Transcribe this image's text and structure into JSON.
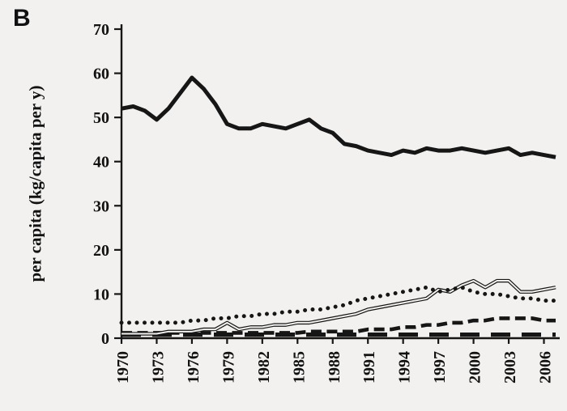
{
  "panel_label": "B",
  "chart_data": {
    "type": "line",
    "title": "",
    "xlabel": "",
    "ylabel": "per capita (kg/capita per y)",
    "ylim": [
      0,
      70
    ],
    "ytick_interval": 10,
    "ytick_labels": [
      0,
      10,
      20,
      30,
      40,
      50,
      60,
      70
    ],
    "grid": false,
    "legend": "none",
    "x": [
      1970,
      1971,
      1972,
      1973,
      1974,
      1975,
      1976,
      1977,
      1978,
      1979,
      1980,
      1981,
      1982,
      1983,
      1984,
      1985,
      1986,
      1987,
      1988,
      1989,
      1990,
      1991,
      1992,
      1993,
      1994,
      1995,
      1996,
      1997,
      1998,
      1999,
      2000,
      2001,
      2002,
      2003,
      2004,
      2005,
      2006,
      2007
    ],
    "xtick_labels": [
      "1970",
      "1973",
      "1976",
      "1979",
      "1982",
      "1985",
      "1988",
      "1991",
      "1994",
      "1997",
      "2000",
      "2003",
      "2006"
    ],
    "series": [
      {
        "name": "solid-thick",
        "style": "solid",
        "values": [
          52,
          52.5,
          51.5,
          49.5,
          52,
          55.5,
          59,
          56.5,
          53,
          48.5,
          47.5,
          47.5,
          48.5,
          48,
          47.5,
          48.5,
          49.5,
          47.5,
          46.5,
          44,
          43.5,
          42.5,
          42,
          41.5,
          42.5,
          42,
          43,
          42.5,
          42.5,
          43,
          42.5,
          42,
          42.5,
          43,
          41.5,
          42,
          41.5,
          41
        ]
      },
      {
        "name": "dotted",
        "style": "dotted",
        "values": [
          3.5,
          3.5,
          3.5,
          3.5,
          3.5,
          3.5,
          4,
          4,
          4.5,
          4.5,
          5,
          5,
          5.5,
          5.5,
          6,
          6,
          6.5,
          6.5,
          7,
          7.5,
          8.5,
          9,
          9.5,
          10,
          10.5,
          11,
          11.5,
          10.5,
          11,
          11.5,
          10.5,
          10,
          10,
          9.5,
          9,
          9,
          8.5,
          8.5
        ]
      },
      {
        "name": "double-line",
        "style": "double",
        "values": [
          1,
          1,
          1,
          1,
          1.5,
          1.5,
          1.5,
          2,
          2,
          3.5,
          2,
          2.5,
          2.5,
          3,
          3,
          3.5,
          3.5,
          4,
          4.5,
          5,
          5.5,
          6.5,
          7,
          7.5,
          8,
          8.5,
          9,
          11,
          10.5,
          12,
          13,
          11.5,
          13,
          13,
          10.5,
          10.5,
          11,
          11.5
        ]
      },
      {
        "name": "dashed",
        "style": "dashed",
        "values": [
          1.2,
          1.2,
          1.2,
          1.2,
          1.2,
          1.2,
          1.2,
          1.2,
          1.2,
          1.2,
          1.2,
          1.2,
          1.2,
          1.2,
          1.2,
          1.2,
          1.5,
          1.5,
          1.5,
          1.5,
          1.5,
          2,
          2,
          2,
          2.5,
          2.5,
          3,
          3,
          3.5,
          3.5,
          4,
          4,
          4.5,
          4.5,
          4.5,
          4.5,
          4,
          4
        ]
      },
      {
        "name": "long-dash",
        "style": "longdash",
        "values": [
          0.8,
          0.8,
          0.8,
          0.8,
          0.8,
          0.8,
          0.8,
          0.8,
          0.8,
          0.8,
          0.8,
          0.8,
          0.8,
          0.8,
          0.8,
          0.8,
          0.8,
          0.8,
          0.8,
          0.8,
          0.8,
          0.8,
          0.8,
          0.8,
          0.8,
          0.8,
          0.8,
          0.8,
          0.8,
          0.8,
          0.8,
          0.8,
          0.8,
          0.8,
          0.8,
          0.8,
          0.8,
          0.8
        ]
      }
    ],
    "colors": {
      "line": "#161616",
      "background": "#f2f1ef"
    }
  }
}
